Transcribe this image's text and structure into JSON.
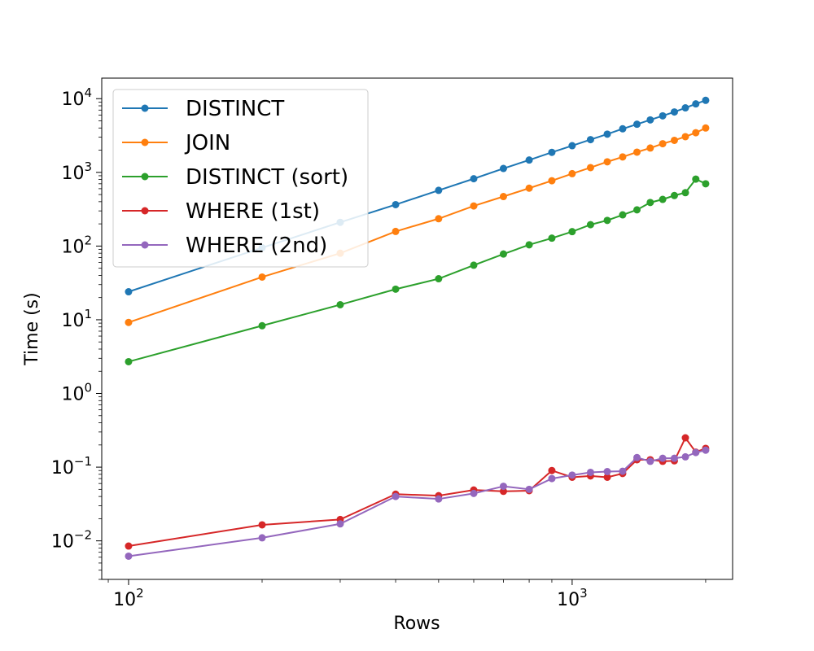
{
  "chart_data": {
    "type": "line",
    "xlabel": "Rows",
    "ylabel": "Time (s)",
    "xscale": "log",
    "yscale": "log",
    "xlim": [
      87,
      2300
    ],
    "ylim": [
      0.003,
      19000
    ],
    "grid": false,
    "legend_position": "top-left",
    "x": [
      100,
      200,
      300,
      400,
      500,
      600,
      700,
      800,
      900,
      1000,
      1100,
      1200,
      1300,
      1400,
      1500,
      1600,
      1700,
      1800,
      1900,
      2000
    ],
    "series": [
      {
        "name": "DISTINCT",
        "color": "#1f77b4",
        "values": [
          24,
          95,
          210,
          365,
          570,
          820,
          1130,
          1470,
          1870,
          2300,
          2780,
          3300,
          3900,
          4500,
          5150,
          5850,
          6600,
          7500,
          8500,
          9500
        ]
      },
      {
        "name": "JOIN",
        "color": "#ff7f0e",
        "values": [
          9.2,
          38,
          80,
          158,
          235,
          350,
          470,
          610,
          770,
          960,
          1160,
          1390,
          1620,
          1880,
          2140,
          2450,
          2720,
          3050,
          3450,
          4000
        ]
      },
      {
        "name": "DISTINCT (sort)",
        "color": "#2ca02c",
        "values": [
          2.7,
          8.3,
          16,
          26,
          36,
          55,
          78,
          104,
          128,
          157,
          195,
          223,
          265,
          310,
          390,
          430,
          485,
          530,
          810,
          700
        ]
      },
      {
        "name": "WHERE (1st)",
        "color": "#d62728",
        "values": [
          0.0085,
          0.0165,
          0.0195,
          0.043,
          0.041,
          0.049,
          0.047,
          0.048,
          0.09,
          0.073,
          0.076,
          0.073,
          0.082,
          0.126,
          0.126,
          0.12,
          0.122,
          0.25,
          0.16,
          0.18
        ]
      },
      {
        "name": "WHERE (2nd)",
        "color": "#9467bd",
        "values": [
          0.0062,
          0.011,
          0.017,
          0.04,
          0.037,
          0.044,
          0.055,
          0.05,
          0.07,
          0.078,
          0.085,
          0.087,
          0.088,
          0.135,
          0.12,
          0.132,
          0.132,
          0.138,
          0.158,
          0.17
        ]
      }
    ],
    "x_major_ticks": [
      100,
      1000
    ],
    "x_major_tick_labels": [
      [
        "10",
        "2"
      ],
      [
        "10",
        "3"
      ]
    ],
    "y_major_ticks": [
      0.01,
      0.1,
      1,
      10,
      100,
      1000,
      10000
    ],
    "y_major_tick_labels": [
      [
        "10",
        "−2"
      ],
      [
        "10",
        "−1"
      ],
      [
        "10",
        "0"
      ],
      [
        "10",
        "1"
      ],
      [
        "10",
        "2"
      ],
      [
        "10",
        "3"
      ],
      [
        "10",
        "4"
      ]
    ]
  }
}
